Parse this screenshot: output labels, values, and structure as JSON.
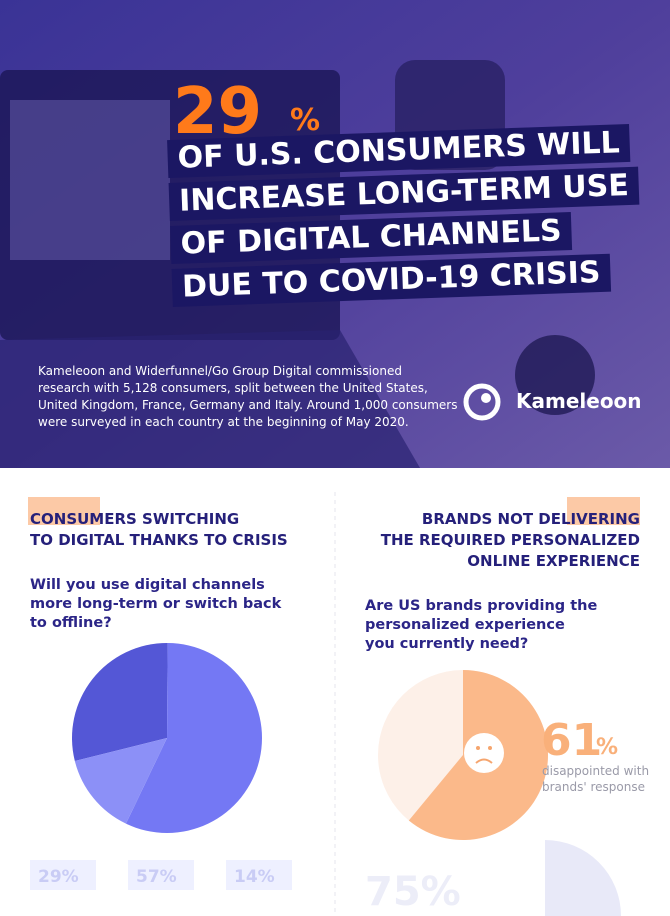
{
  "header": {
    "headline_number": "29",
    "headline_unit": "%",
    "headline_lines": [
      "OF U.S. CONSUMERS WILL",
      "INCREASE LONG-TERM USE",
      "OF DIGITAL CHANNELS",
      "DUE TO COVID-19 CRISIS"
    ],
    "description_lines": [
      "Kameleoon and Widerfunnel/Go Group Digital commissioned",
      "research with 5,128 consumers, split between the United States,",
      "United Kingdom, France, Germany and Italy. Around 1,000 consumers",
      "were surveyed in each country at the beginning of May 2020."
    ],
    "brand": "Kameleoon"
  },
  "left": {
    "title_lines": [
      "CONSUMERS SWITCHING",
      "TO DIGITAL THANKS TO CRISIS"
    ],
    "question_lines": [
      "Will you use digital channels",
      "more long-term or switch back",
      "to offline?"
    ],
    "chart_data": {
      "type": "pie",
      "values": [
        29,
        57,
        14
      ],
      "value_labels": [
        "29%",
        "57%",
        "14%"
      ],
      "colors": [
        "#5457d6",
        "#7478f4",
        "#8c90f7"
      ]
    }
  },
  "right": {
    "title_lines": [
      "BRANDS NOT DELIVERING",
      "THE REQUIRED PERSONALIZED",
      "ONLINE EXPERIENCE"
    ],
    "question_lines": [
      "Are US brands providing the",
      "personalized experience",
      "you currently need?"
    ],
    "chart_data": {
      "type": "pie",
      "values": [
        61
      ],
      "colors": [
        "#fbb98a"
      ]
    },
    "stat_number": "61",
    "stat_unit": "%",
    "stat_caption_lines": [
      "disappointed with",
      "brands' response"
    ],
    "footer_stat": "75%"
  }
}
